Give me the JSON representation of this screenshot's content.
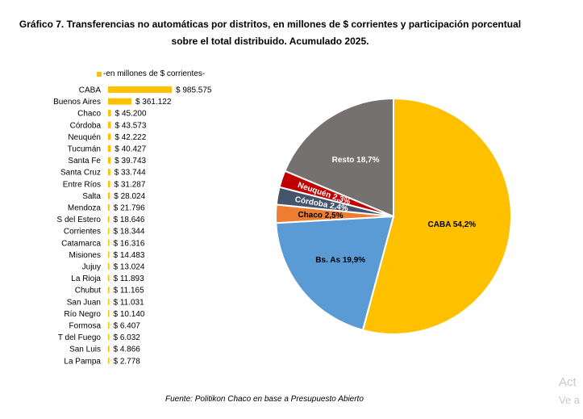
{
  "title_line1": "Gráfico 7. Transferencias no automáticas por distritos, en millones de $ corrientes y participación porcentual",
  "title_line2": "sobre el total distribuido. Acumulado 2025.",
  "source": "Fuente: Politikon Chaco en base a Presupuesto Abierto",
  "watermark_line1": "Act",
  "watermark_line2": "Ve a",
  "colors": {
    "bar": "#FFC000",
    "caba": "#FFC000",
    "bs_as": "#5B9BD5",
    "chaco": "#ED7D31",
    "cordoba": "#44546A",
    "neuquen": "#C00000",
    "resto": "#767171"
  },
  "chart_data": [
    {
      "type": "bar",
      "orientation": "horizontal",
      "legend": "-en millones de $ corrientes-",
      "legend_position": "top",
      "categories": [
        "CABA",
        "Buenos Aires",
        "Chaco",
        "Córdoba",
        "Neuquén",
        "Tucumán",
        "Santa Fe",
        "Santa Cruz",
        "Entre Ríos",
        "Salta",
        "Mendoza",
        "S del Estero",
        "Corrientes",
        "Catamarca",
        "Misiones",
        "Jujuy",
        "La Rioja",
        "Chubut",
        "San Juan",
        "Río Negro",
        "Formosa",
        "T del Fuego",
        "San Luis",
        "La Pampa"
      ],
      "values": [
        985575,
        361122,
        45200,
        43573,
        42222,
        40427,
        39743,
        33744,
        31287,
        28024,
        21796,
        18646,
        18344,
        16316,
        14483,
        13024,
        11893,
        11165,
        11031,
        10140,
        6407,
        6032,
        4866,
        2778
      ],
      "value_labels": [
        "$ 985.575",
        "$ 361.122",
        "$ 45.200",
        "$ 43.573",
        "$ 42.222",
        "$ 40.427",
        "$ 39.743",
        "$ 33.744",
        "$ 31.287",
        "$ 28.024",
        "$ 21.796",
        "$ 18.646",
        "$ 18.344",
        "$ 16.316",
        "$ 14.483",
        "$ 13.024",
        "$ 11.893",
        "$ 11.165",
        "$ 11.031",
        "$ 10.140",
        "$ 6.407",
        "$ 6.032",
        "$ 4.866",
        "$ 2.778"
      ]
    },
    {
      "type": "pie",
      "slices": [
        {
          "label": "CABA 54,2%",
          "value": 54.2,
          "color": "#FFC000",
          "label_color": "#000000"
        },
        {
          "label": "Bs. As 19,9%",
          "value": 19.9,
          "color": "#5B9BD5",
          "label_color": "#000000"
        },
        {
          "label": "Chaco 2,5%",
          "value": 2.5,
          "color": "#ED7D31",
          "label_color": "#000000"
        },
        {
          "label": "Córdoba 2,4%",
          "value": 2.4,
          "color": "#44546A",
          "label_color": "#ffffff"
        },
        {
          "label": "Neuquén 2,3%",
          "value": 2.3,
          "color": "#C00000",
          "label_color": "#ffffff"
        },
        {
          "label": "Resto 18,7%",
          "value": 18.7,
          "color": "#767171",
          "label_color": "#ffffff"
        }
      ]
    }
  ]
}
